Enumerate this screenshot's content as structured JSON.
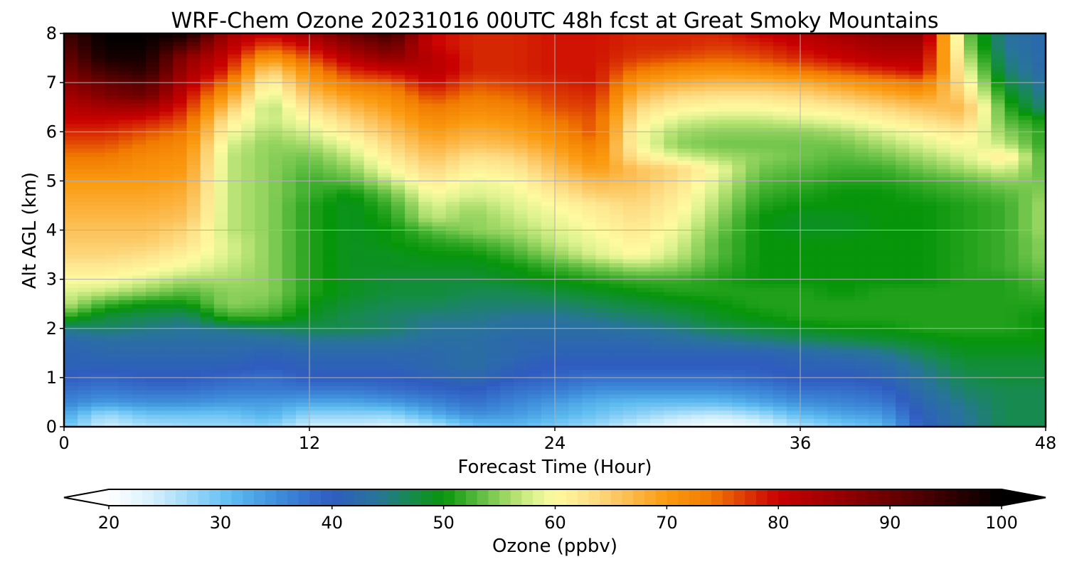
{
  "chart_data": {
    "type": "heatmap",
    "title": "WRF-Chem Ozone  20231016 00UTC 48h fcst at Great Smoky Mountains",
    "xlabel": "Forecast Time (Hour)",
    "ylabel": "Alt AGL (km)",
    "xlim": [
      0,
      48
    ],
    "ylim": [
      0,
      8
    ],
    "x_ticks": [
      "0",
      "12",
      "24",
      "36",
      "48"
    ],
    "y_ticks": [
      "0",
      "1",
      "2",
      "3",
      "4",
      "5",
      "6",
      "7",
      "8"
    ],
    "grid": true,
    "x": [
      0,
      2,
      4,
      6,
      8,
      10,
      12,
      14,
      16,
      18,
      20,
      22,
      24,
      26,
      28,
      30,
      32,
      34,
      36,
      38,
      40,
      42,
      44,
      46,
      48
    ],
    "y": [
      0,
      0.25,
      0.5,
      0.75,
      1,
      1.25,
      1.5,
      1.75,
      2,
      2.25,
      2.5,
      2.75,
      3,
      3.25,
      3.5,
      3.75,
      4,
      4.25,
      4.5,
      4.75,
      5,
      5.25,
      5.5,
      5.75,
      6,
      6.25,
      6.5,
      6.75,
      7,
      7.25,
      7.5,
      7.75,
      8
    ],
    "z_note": "values in ppbv, rows indexed by altitude (y), columns by forecast hour (x)",
    "z": [
      [
        30,
        24,
        26,
        27,
        27,
        28,
        24,
        24,
        23,
        25,
        30,
        31,
        29,
        27,
        24,
        22,
        20,
        22,
        26,
        29,
        31,
        40,
        44,
        47,
        47
      ],
      [
        33,
        27,
        30,
        30,
        30,
        32,
        28,
        28,
        28,
        32,
        35,
        34,
        32,
        30,
        28,
        26,
        25,
        27,
        31,
        33,
        34,
        41,
        44,
        47,
        47
      ],
      [
        36,
        34,
        35,
        35,
        34,
        34,
        33,
        33,
        34,
        36,
        38,
        36,
        34,
        32,
        31,
        31,
        31,
        33,
        35,
        36,
        37,
        42,
        45,
        47,
        47
      ],
      [
        38,
        37,
        38,
        38,
        37,
        37,
        37,
        37,
        38,
        39,
        40,
        38,
        37,
        35,
        35,
        35,
        35,
        36,
        38,
        38,
        39,
        43,
        46,
        47,
        47
      ],
      [
        40,
        39,
        40,
        40,
        39,
        38,
        40,
        40,
        40,
        41,
        42,
        40,
        39,
        38,
        38,
        38,
        38,
        39,
        40,
        40,
        41,
        44,
        47,
        48,
        48
      ],
      [
        41,
        41,
        41,
        41,
        41,
        40,
        41,
        41,
        41,
        42,
        43,
        41,
        40,
        40,
        40,
        40,
        40,
        40,
        41,
        41,
        42,
        45,
        48,
        48,
        48
      ],
      [
        41,
        42,
        42,
        42,
        42,
        41,
        42,
        42,
        42,
        42,
        43,
        42,
        41,
        41,
        41,
        41,
        41,
        41,
        42,
        43,
        44,
        47,
        49,
        49,
        49
      ],
      [
        42,
        43,
        43,
        43,
        43,
        43,
        44,
        44,
        44,
        43,
        43,
        42,
        42,
        42,
        42,
        43,
        44,
        45,
        46,
        47,
        48,
        49,
        50,
        50,
        50
      ],
      [
        45,
        46,
        45,
        44,
        45,
        46,
        47,
        47,
        46,
        44,
        44,
        43,
        43,
        43,
        44,
        45,
        47,
        48,
        49,
        50,
        50,
        51,
        51,
        51,
        50
      ],
      [
        52,
        48,
        47,
        46,
        52,
        52,
        49,
        47,
        46,
        45,
        45,
        44,
        44,
        45,
        46,
        47,
        49,
        50,
        51,
        51,
        51,
        51,
        51,
        51,
        50
      ],
      [
        57,
        52,
        50,
        50,
        55,
        54,
        50,
        48,
        47,
        47,
        46,
        46,
        46,
        47,
        48,
        49,
        50,
        51,
        51,
        51,
        51,
        51,
        51,
        51,
        51
      ],
      [
        58,
        57,
        55,
        53,
        55,
        55,
        51,
        49,
        48,
        48,
        47,
        47,
        48,
        49,
        50,
        51,
        51,
        51,
        51,
        50,
        51,
        51,
        51,
        51,
        52
      ],
      [
        60,
        60,
        58,
        56,
        56,
        55,
        51,
        49,
        48,
        48,
        48,
        49,
        50,
        51,
        52,
        52,
        51,
        50,
        50,
        50,
        50,
        50,
        51,
        51,
        53
      ],
      [
        62,
        62,
        61,
        59,
        57,
        55,
        51,
        49,
        49,
        49,
        49,
        50,
        52,
        54,
        56,
        55,
        52,
        50,
        50,
        50,
        50,
        50,
        51,
        52,
        54
      ],
      [
        64,
        64,
        63,
        61,
        58,
        55,
        51,
        49,
        49,
        50,
        50,
        52,
        55,
        58,
        60,
        57,
        53,
        50,
        50,
        50,
        50,
        50,
        51,
        52,
        55
      ],
      [
        65,
        65,
        65,
        63,
        58,
        55,
        51,
        49,
        50,
        51,
        52,
        54,
        57,
        59,
        61,
        58,
        53,
        50,
        50,
        50,
        50,
        50,
        51,
        52,
        55
      ],
      [
        66,
        66,
        66,
        64,
        57,
        55,
        51,
        49,
        50,
        53,
        55,
        56,
        58,
        60,
        62,
        59,
        54,
        50,
        49,
        49,
        50,
        50,
        51,
        52,
        56
      ],
      [
        67,
        67,
        67,
        66,
        57,
        55,
        51,
        49,
        51,
        57,
        55,
        57,
        59,
        61,
        63,
        60,
        55,
        50,
        49,
        49,
        50,
        50,
        51,
        52,
        56
      ],
      [
        68,
        68,
        68,
        67,
        57,
        55,
        51,
        49,
        52,
        58,
        56,
        58,
        60,
        62,
        64,
        61,
        56,
        51,
        50,
        50,
        50,
        50,
        51,
        52,
        56
      ],
      [
        69,
        69,
        69,
        68,
        57,
        55,
        52,
        50,
        54,
        60,
        58,
        59,
        62,
        65,
        65,
        62,
        57,
        52,
        51,
        50,
        50,
        51,
        52,
        53,
        55
      ],
      [
        70,
        70,
        70,
        69,
        57,
        55,
        52,
        53,
        57,
        62,
        59,
        60,
        64,
        67,
        66,
        63,
        58,
        53,
        52,
        51,
        51,
        52,
        53,
        55,
        54
      ],
      [
        72,
        72,
        71,
        70,
        57,
        55,
        53,
        55,
        60,
        64,
        61,
        62,
        66,
        70,
        66,
        64,
        59,
        54,
        53,
        52,
        52,
        54,
        56,
        58,
        53
      ],
      [
        74,
        74,
        72,
        71,
        57,
        55,
        54,
        57,
        62,
        66,
        63,
        64,
        68,
        72,
        62,
        58,
        56,
        55,
        54,
        53,
        54,
        56,
        58,
        62,
        52
      ],
      [
        76,
        76,
        74,
        72,
        58,
        55,
        56,
        59,
        64,
        68,
        66,
        67,
        70,
        74,
        60,
        55,
        54,
        54,
        54,
        54,
        56,
        58,
        60,
        57,
        51
      ],
      [
        78,
        78,
        76,
        74,
        60,
        56,
        58,
        62,
        66,
        70,
        68,
        69,
        72,
        76,
        60,
        56,
        55,
        55,
        55,
        56,
        58,
        60,
        62,
        55,
        51
      ],
      [
        80,
        80,
        79,
        76,
        62,
        57,
        60,
        64,
        68,
        72,
        70,
        71,
        74,
        76,
        62,
        58,
        57,
        57,
        58,
        59,
        61,
        63,
        65,
        53,
        50
      ],
      [
        82,
        84,
        84,
        78,
        66,
        56,
        63,
        67,
        70,
        74,
        72,
        73,
        76,
        77,
        64,
        61,
        60,
        60,
        61,
        62,
        64,
        66,
        67,
        52,
        45
      ],
      [
        84,
        88,
        90,
        80,
        70,
        58,
        66,
        70,
        72,
        77,
        74,
        75,
        77,
        78,
        67,
        64,
        63,
        63,
        64,
        66,
        68,
        70,
        64,
        50,
        44
      ],
      [
        86,
        90,
        92,
        82,
        74,
        60,
        69,
        74,
        75,
        80,
        76,
        77,
        78,
        79,
        70,
        68,
        67,
        67,
        68,
        70,
        72,
        74,
        62,
        48,
        43
      ],
      [
        88,
        94,
        96,
        84,
        78,
        64,
        72,
        78,
        80,
        82,
        78,
        78,
        79,
        79,
        74,
        72,
        71,
        72,
        74,
        76,
        78,
        80,
        60,
        46,
        42
      ],
      [
        90,
        98,
        98,
        86,
        80,
        70,
        76,
        82,
        86,
        82,
        78,
        78,
        79,
        79,
        77,
        76,
        75,
        76,
        78,
        80,
        82,
        82,
        58,
        45,
        42
      ],
      [
        92,
        99,
        99,
        92,
        82,
        76,
        80,
        86,
        90,
        80,
        78,
        78,
        79,
        79,
        78,
        78,
        77,
        78,
        80,
        82,
        84,
        84,
        56,
        44,
        42
      ],
      [
        94,
        100,
        100,
        98,
        84,
        80,
        84,
        90,
        94,
        80,
        78,
        78,
        79,
        79,
        78,
        78,
        78,
        80,
        82,
        84,
        86,
        86,
        55,
        44,
        42
      ]
    ]
  },
  "colorbar": {
    "label": "Ozone  (ppbv)",
    "min": 20,
    "max": 100,
    "ticks": [
      "20",
      "30",
      "40",
      "50",
      "60",
      "70",
      "80",
      "90",
      "100"
    ],
    "extend": "both",
    "stops": [
      {
        "value": 20,
        "color": "#ffffff"
      },
      {
        "value": 24,
        "color": "#d6f0fc"
      },
      {
        "value": 28,
        "color": "#8fd3f7"
      },
      {
        "value": 31,
        "color": "#5ebcf0"
      },
      {
        "value": 35,
        "color": "#3f8fdc"
      },
      {
        "value": 40,
        "color": "#2f5cc0"
      },
      {
        "value": 44,
        "color": "#28749a"
      },
      {
        "value": 47,
        "color": "#178a50"
      },
      {
        "value": 50,
        "color": "#07950a"
      },
      {
        "value": 53,
        "color": "#56b93c"
      },
      {
        "value": 56,
        "color": "#a8dc6a"
      },
      {
        "value": 58,
        "color": "#dcf28e"
      },
      {
        "value": 60,
        "color": "#fffaa0"
      },
      {
        "value": 63,
        "color": "#fde18a"
      },
      {
        "value": 66,
        "color": "#fcc25a"
      },
      {
        "value": 70,
        "color": "#fb9a10"
      },
      {
        "value": 74,
        "color": "#f17a00"
      },
      {
        "value": 77,
        "color": "#dd3a05"
      },
      {
        "value": 80,
        "color": "#c90000"
      },
      {
        "value": 85,
        "color": "#9b0000"
      },
      {
        "value": 90,
        "color": "#6a0000"
      },
      {
        "value": 95,
        "color": "#350000"
      },
      {
        "value": 100,
        "color": "#000000"
      }
    ]
  }
}
